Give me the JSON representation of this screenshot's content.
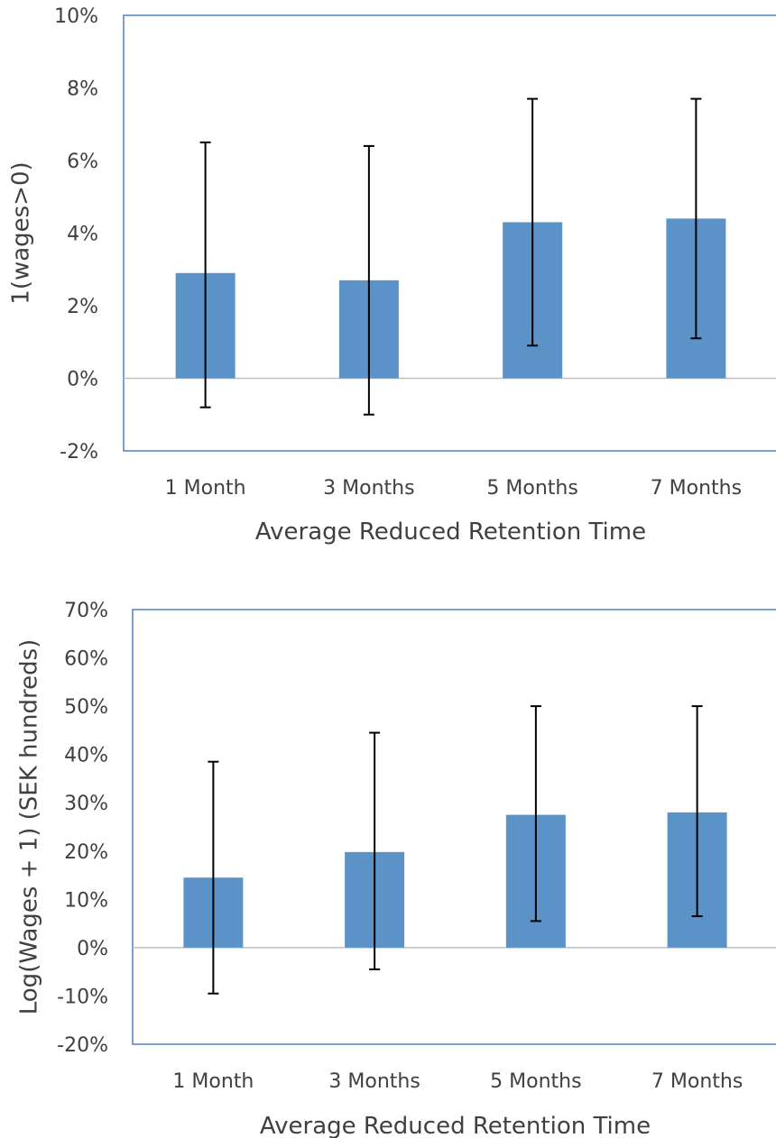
{
  "chart_data": [
    {
      "type": "bar",
      "title": "",
      "xlabel": "Average Reduced Retention Time",
      "ylabel": "1(wages>0)",
      "categories": [
        "1 Month",
        "3 Months",
        "5 Months",
        "7 Months"
      ],
      "values": [
        2.9,
        2.7,
        4.3,
        4.4
      ],
      "error_low": [
        -0.8,
        -1.0,
        0.9,
        1.1
      ],
      "error_high": [
        6.5,
        6.4,
        7.7,
        7.7
      ],
      "ylim": [
        -2,
        10
      ],
      "yticks": [
        -2,
        0,
        2,
        4,
        6,
        8,
        10
      ],
      "ytick_labels": [
        "-2%",
        "0%",
        "2%",
        "4%",
        "6%",
        "8%",
        "10%"
      ],
      "grid": false,
      "legend": "none",
      "colors": {
        "bar": "#5b93c9",
        "frame": "#4f81bd",
        "error": "#000000"
      }
    },
    {
      "type": "bar",
      "title": "",
      "xlabel": "Average Reduced Retention Time",
      "ylabel": "Log(Wages + 1) (SEK hundreds)",
      "categories": [
        "1 Month",
        "3 Months",
        "5 Months",
        "7 Months"
      ],
      "values": [
        14.5,
        19.8,
        27.5,
        28.0
      ],
      "error_low": [
        -9.5,
        -4.5,
        5.5,
        6.5
      ],
      "error_high": [
        38.5,
        44.5,
        50.0,
        50.0
      ],
      "ylim": [
        -20,
        70
      ],
      "yticks": [
        -20,
        -10,
        0,
        10,
        20,
        30,
        40,
        50,
        60,
        70
      ],
      "ytick_labels": [
        "-20%",
        "-10%",
        "0%",
        "10%",
        "20%",
        "30%",
        "40%",
        "50%",
        "60%",
        "70%"
      ],
      "grid": false,
      "legend": "none",
      "colors": {
        "bar": "#5b93c9",
        "frame": "#4f81bd",
        "error": "#000000"
      }
    }
  ]
}
